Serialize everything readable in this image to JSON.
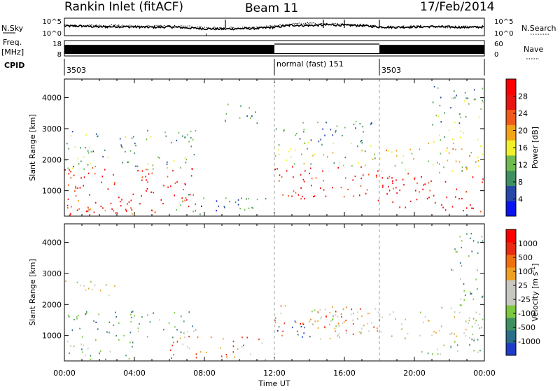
{
  "header": {
    "station": "Rankin Inlet (fitACF)",
    "beam": "Beam 11",
    "date": "17/Feb/2014"
  },
  "chart_data": [
    {
      "type": "line",
      "panel": "noise",
      "left_label": "N.Sky",
      "right_label": "N.Search",
      "yticks_left": [
        "10^5",
        "10^0"
      ],
      "yticks_right": [
        "10^5",
        "10^0"
      ],
      "series": [
        {
          "name": "N.Sky",
          "x": [
            0,
            1,
            2,
            3,
            4,
            5,
            6,
            7,
            8,
            9,
            10,
            11,
            12,
            13,
            14,
            15,
            16,
            17,
            18,
            19,
            20,
            21,
            22,
            23,
            24
          ],
          "y": [
            0.55,
            0.55,
            0.5,
            0.52,
            0.5,
            0.48,
            0.5,
            0.45,
            0.4,
            0.38,
            0.4,
            0.42,
            0.48,
            0.6,
            0.58,
            0.62,
            0.6,
            0.58,
            0.5,
            0.48,
            0.5,
            0.52,
            0.5,
            0.48,
            0.5
          ]
        },
        {
          "name": "N.Search",
          "x": [
            0,
            2,
            4,
            6,
            7.5,
            9,
            11,
            12,
            13,
            14,
            15,
            16,
            17,
            18,
            20,
            22,
            24
          ],
          "y": [
            0.58,
            0.6,
            0.55,
            0.55,
            0.5,
            0.42,
            0.45,
            0.55,
            0.68,
            0.7,
            0.66,
            0.64,
            0.6,
            0.5,
            0.52,
            0.5,
            0.52
          ]
        }
      ]
    },
    {
      "type": "bar",
      "panel": "frequency",
      "left_label": "Freq.",
      "left_unit": "[MHz]",
      "right_label": "Nave",
      "yticks_left": [
        "18",
        "8"
      ],
      "yticks_right": [
        "60",
        "0"
      ],
      "segments": [
        {
          "x0": 0,
          "x1": 12,
          "level": 0.72
        },
        {
          "x0": 12,
          "x1": 18,
          "level": 0.18
        },
        {
          "x0": 18,
          "x1": 24,
          "level": 0.72
        }
      ]
    },
    {
      "type": "table",
      "panel": "cpid",
      "label": "CPID",
      "entries": [
        {
          "x0": 0,
          "text": "3503"
        },
        {
          "x0": 12,
          "text": "normal (fast) 151"
        },
        {
          "x0": 18,
          "text": "3503"
        }
      ]
    },
    {
      "type": "heatmap",
      "panel": "power",
      "ylabel": "Slant Range [km]",
      "ylim": [
        180,
        4600
      ],
      "yticks": [
        1000,
        2000,
        3000,
        4000
      ],
      "xlim": [
        0,
        24
      ],
      "colorbar": {
        "label": "Power [dB]",
        "ticks": [
          "4",
          "8",
          "12",
          "16",
          "20",
          "24",
          "28"
        ],
        "colors": [
          "#0a14f0",
          "#2848a8",
          "#3f9060",
          "#6fbb50",
          "#f2f02a",
          "#f2a318",
          "#f05a1a",
          "#e8140f",
          "#ff0000"
        ]
      },
      "blobs": [
        {
          "t0": 0,
          "t1": 7.5,
          "r0": 300,
          "r1": 1800,
          "level": 0.85
        },
        {
          "t0": 0,
          "t1": 7.5,
          "r0": 1700,
          "r1": 3000,
          "level": 0.35
        },
        {
          "t0": 0,
          "t1": 4,
          "r0": 180,
          "r1": 700,
          "level": 0.75
        },
        {
          "t0": 6,
          "t1": 11.5,
          "r0": 200,
          "r1": 900,
          "level": 0.25
        },
        {
          "t0": 12,
          "t1": 18,
          "r0": 700,
          "r1": 1800,
          "level": 0.85
        },
        {
          "t0": 12,
          "t1": 18,
          "r0": 1800,
          "r1": 2600,
          "level": 0.45
        },
        {
          "t0": 12,
          "t1": 18,
          "r0": 2600,
          "r1": 3300,
          "level": 0.25
        },
        {
          "t0": 18,
          "t1": 24,
          "r0": 350,
          "r1": 1600,
          "level": 0.9
        },
        {
          "t0": 18,
          "t1": 24,
          "r0": 1600,
          "r1": 2600,
          "level": 0.5
        },
        {
          "t0": 21,
          "t1": 24,
          "r0": 2600,
          "r1": 4400,
          "level": 0.35
        },
        {
          "t0": 9,
          "t1": 11,
          "r0": 3200,
          "r1": 3900,
          "level": 0.25
        }
      ]
    },
    {
      "type": "heatmap",
      "panel": "velocity",
      "ylabel": "Slant Range [km]",
      "xlabel": "Time UT",
      "ylim": [
        180,
        4600
      ],
      "yticks": [
        1000,
        2000,
        3000,
        4000
      ],
      "xlim": [
        0,
        24
      ],
      "xticks": [
        "00:00",
        "04:00",
        "08:00",
        "12:00",
        "16:00",
        "20:00",
        "00:00"
      ],
      "colorbar": {
        "label": "Velocity [m s",
        "label_sup": "-1",
        "label_end": "]",
        "ticks": [
          "1000",
          "500",
          "100",
          "25",
          "-25",
          "-100",
          "-500",
          "-1000"
        ],
        "colors": [
          "#1e3cc8",
          "#2a6e8a",
          "#3f9060",
          "#7cc840",
          "#c8c8c0",
          "#c8c8c0",
          "#f0a020",
          "#f07010",
          "#e82a10",
          "#ff0000"
        ]
      },
      "blobs": [
        {
          "t0": 0,
          "t1": 7.5,
          "r0": 900,
          "r1": 1800,
          "level": 0.25
        },
        {
          "t0": 0,
          "t1": 4,
          "r0": 180,
          "r1": 900,
          "level": 0.3
        },
        {
          "t0": 0,
          "t1": 3,
          "r0": 2300,
          "r1": 2800,
          "level": 0.5
        },
        {
          "t0": 6,
          "t1": 11.5,
          "r0": 200,
          "r1": 1000,
          "level": 0.7
        },
        {
          "t0": 12,
          "t1": 14,
          "r0": 900,
          "r1": 1500,
          "level": 0.05
        },
        {
          "t0": 12,
          "t1": 18,
          "r0": 1000,
          "r1": 2000,
          "level": 0.75
        },
        {
          "t0": 14,
          "t1": 24,
          "r0": 900,
          "r1": 2000,
          "level": 0.5
        },
        {
          "t0": 20,
          "t1": 24,
          "r0": 400,
          "r1": 1100,
          "level": 0.35
        },
        {
          "t0": 22,
          "t1": 24,
          "r0": 2000,
          "r1": 4400,
          "level": 0.3
        }
      ]
    }
  ]
}
